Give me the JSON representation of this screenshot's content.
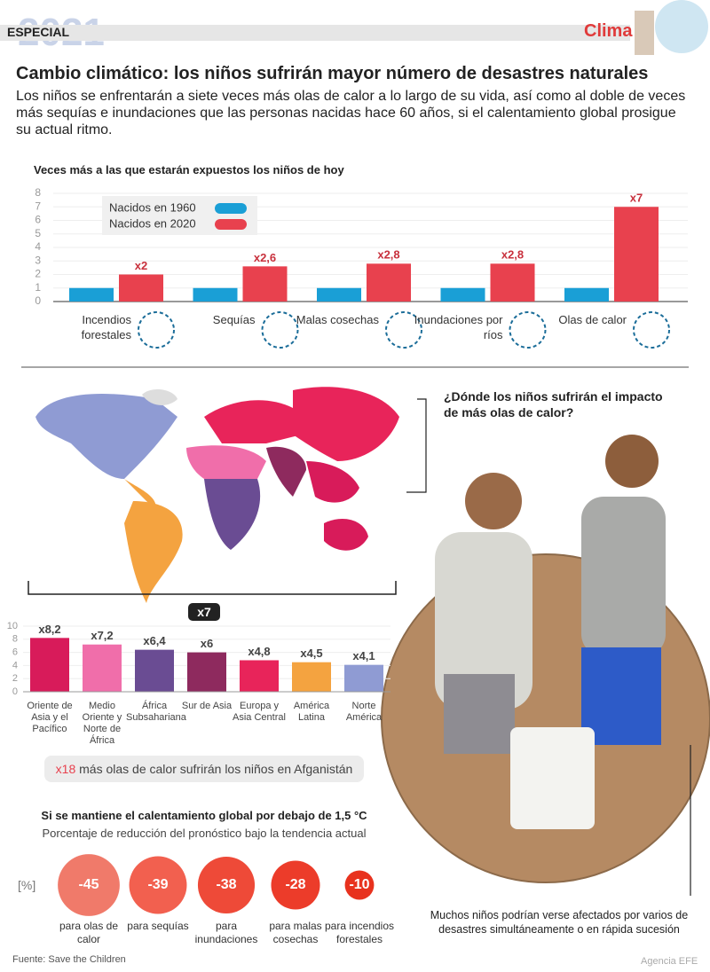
{
  "header": {
    "kicker": "ESPECIAL",
    "year": "2021",
    "section": "Clima"
  },
  "title": "Cambio climático: los niños sufrirán mayor número de desastres naturales",
  "subtitle": "Los niños se enfrentarán a siete veces más olas de calor a lo largo de su vida, así como al doble de veces más sequías e inundaciones que las personas nacidas hace 60 años, si el calentamiento global prosigue su actual ritmo.",
  "map": {
    "question": "¿Dónde los niños sufrirán el impacto de más olas de calor?",
    "factor": "x7"
  },
  "afghanistan": {
    "factor": "x18",
    "text": "más olas de calor sufrirán los niños en Afganistán"
  },
  "photo_caption": "Muchos niños podrían verse afectados por varios de desastres simultáneamente o en rápida sucesión",
  "source": "Fuente: Save the Children",
  "credit": "Agencia EFE",
  "chart_data": [
    {
      "type": "grouped_bar",
      "title": "Veces más a las que estarán expuestos los niños de hoy",
      "categories": [
        "Incendios forestales",
        "Sequías",
        "Malas cosechas",
        "Inundaciones por ríos",
        "Olas de calor"
      ],
      "series": [
        {
          "name": "Nacidos en 1960",
          "color": "#1a9fd6",
          "values": [
            1,
            1,
            1,
            1,
            1
          ]
        },
        {
          "name": "Nacidos en 2020",
          "color": "#e8414e",
          "values": [
            2,
            2.6,
            2.8,
            2.8,
            7
          ],
          "value_labels": [
            "x2",
            "x2,6",
            "x2,8",
            "x2,8",
            "x7"
          ]
        }
      ],
      "ylim": [
        0,
        8
      ],
      "yticks": [
        0,
        1,
        2,
        3,
        4,
        5,
        6,
        7,
        8
      ],
      "grid": true
    },
    {
      "type": "bar",
      "categories": [
        "Oriente de Asia y el Pacífico",
        "Medio Oriente y Norte de África",
        "África Subsahariana",
        "Sur de Asia",
        "Europa y Asia Central",
        "América Latina",
        "Norte América"
      ],
      "values": [
        8.2,
        7.2,
        6.4,
        6,
        4.8,
        4.5,
        4.1
      ],
      "value_labels": [
        "x8,2",
        "x7,2",
        "x6,4",
        "x6",
        "x4,8",
        "x4,5",
        "x4,1"
      ],
      "colors": [
        "#d81b5a",
        "#f06eaa",
        "#6a4c93",
        "#8e2a5e",
        "#e8245a",
        "#f4a340",
        "#8f9bd3"
      ],
      "ylim": [
        0,
        10
      ],
      "yticks": [
        0,
        2,
        4,
        6,
        8,
        10
      ],
      "grid": true
    },
    {
      "type": "bubble",
      "title": "Si se mantiene el calentamiento global por debajo de 1,5 °C",
      "subtitle": "Porcentaje de reducción del pronóstico bajo la tendencia actual",
      "unit": "[%]",
      "categories": [
        "para olas de calor",
        "para sequías",
        "para inundaciones",
        "para malas cosechas",
        "para incendios forestales"
      ],
      "values": [
        -45,
        -39,
        -38,
        -28,
        -10
      ],
      "colors": [
        "#f07a6a",
        "#f2604f",
        "#ee4a38",
        "#ec3c2a",
        "#e8321e"
      ]
    }
  ]
}
